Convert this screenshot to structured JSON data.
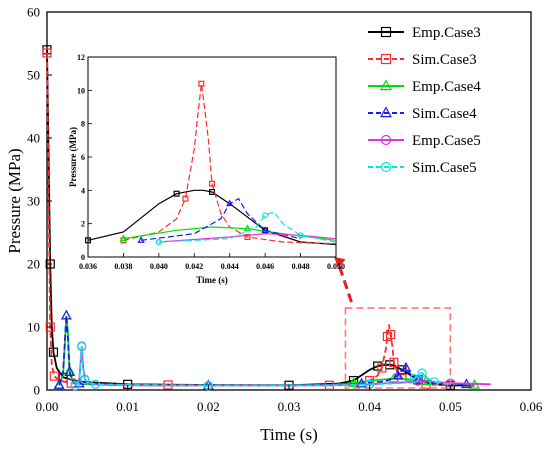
{
  "chart_data": {
    "type": "line",
    "xlabel": "Time (s)",
    "ylabel": "Pressure (MPa)",
    "xlim": [
      0,
      0.06
    ],
    "ylim": [
      0,
      60
    ],
    "xticks": [
      "0.00",
      "0.01",
      "0.02",
      "0.03",
      "0.04",
      "0.05",
      "0.06"
    ],
    "yticks": [
      "0",
      "10",
      "20",
      "30",
      "40",
      "50",
      "60"
    ],
    "legend_position": "top-right",
    "series": [
      {
        "name": "Emp.Case3",
        "color": "#000000",
        "dash": "solid",
        "marker": "square",
        "x": [
          0.0,
          0.0002,
          0.0004,
          0.0006,
          0.0008,
          0.0012,
          0.002,
          0.004,
          0.01,
          0.02,
          0.03,
          0.036,
          0.038,
          0.04,
          0.041,
          0.042,
          0.0425,
          0.043,
          0.044,
          0.045,
          0.046,
          0.048,
          0.05,
          0.053
        ],
        "y": [
          54,
          37,
          20,
          10,
          6,
          3.5,
          2,
          1.3,
          0.9,
          0.8,
          0.75,
          1.0,
          1.5,
          3.2,
          3.8,
          4.0,
          4.0,
          3.9,
          3.2,
          2.4,
          1.6,
          0.9,
          0.75,
          0.7
        ]
      },
      {
        "name": "Sim.Case3",
        "color": "#ff2a2a",
        "dash": "dashed",
        "marker": "square",
        "x": [
          0.0,
          0.0002,
          0.0004,
          0.0006,
          0.0009,
          0.0015,
          0.003,
          0.006,
          0.015,
          0.025,
          0.035,
          0.038,
          0.04,
          0.041,
          0.0415,
          0.042,
          0.0422,
          0.0424,
          0.0426,
          0.0428,
          0.043,
          0.0435,
          0.044,
          0.045,
          0.047,
          0.05
        ],
        "y": [
          53.5,
          30,
          10,
          4,
          2.2,
          1.5,
          1.1,
          0.9,
          0.8,
          0.75,
          0.75,
          1.0,
          1.5,
          2.3,
          3.5,
          6.5,
          8.5,
          10.4,
          8.8,
          7.0,
          4.4,
          2.6,
          1.8,
          1.2,
          0.9,
          0.8
        ]
      },
      {
        "name": "Emp.Case4",
        "color": "#00e000",
        "dash": "solid",
        "marker": "triangle",
        "x": [
          0.0015,
          0.002,
          0.0024,
          0.0026,
          0.0028,
          0.0032,
          0.004,
          0.008,
          0.02,
          0.035,
          0.038,
          0.041,
          0.043,
          0.045,
          0.047,
          0.05,
          0.053
        ],
        "y": [
          0.7,
          2.5,
          11.8,
          9.0,
          3.0,
          1.5,
          1.0,
          0.8,
          0.7,
          0.8,
          1.1,
          1.6,
          1.8,
          1.7,
          1.4,
          1.0,
          0.8
        ]
      },
      {
        "name": "Sim.Case4",
        "color": "#1a1aff",
        "dash": "dashed",
        "marker": "triangle",
        "x": [
          0.0015,
          0.002,
          0.0024,
          0.0026,
          0.0028,
          0.0032,
          0.004,
          0.008,
          0.02,
          0.035,
          0.039,
          0.042,
          0.0435,
          0.044,
          0.0445,
          0.045,
          0.046,
          0.048,
          0.052
        ],
        "y": [
          0.8,
          2.8,
          11.8,
          8.0,
          2.8,
          1.4,
          1.0,
          0.8,
          0.7,
          0.8,
          1.0,
          1.4,
          2.3,
          3.2,
          3.5,
          2.6,
          1.6,
          1.1,
          0.9
        ]
      },
      {
        "name": "Emp.Case5",
        "color": "#e033e0",
        "dash": "solid",
        "marker": "circle",
        "x": [
          0.0035,
          0.004,
          0.0043,
          0.0045,
          0.0047,
          0.0052,
          0.006,
          0.01,
          0.02,
          0.035,
          0.04,
          0.044,
          0.046,
          0.048,
          0.05,
          0.055
        ],
        "y": [
          0.6,
          1.5,
          6.9,
          3.5,
          1.7,
          1.1,
          0.9,
          0.75,
          0.7,
          0.75,
          0.9,
          1.2,
          1.4,
          1.3,
          1.1,
          0.9
        ]
      },
      {
        "name": "Sim.Case5",
        "color": "#00e5e5",
        "dash": "dashed",
        "marker": "circle",
        "x": [
          0.0035,
          0.004,
          0.0043,
          0.0045,
          0.0047,
          0.0052,
          0.006,
          0.01,
          0.02,
          0.035,
          0.04,
          0.044,
          0.0455,
          0.046,
          0.0465,
          0.047,
          0.048,
          0.05
        ],
        "y": [
          0.7,
          1.6,
          7.0,
          3.2,
          1.6,
          1.1,
          0.9,
          0.8,
          0.7,
          0.75,
          0.9,
          1.1,
          1.8,
          2.5,
          2.7,
          2.0,
          1.3,
          0.9
        ]
      }
    ],
    "inset": {
      "xlabel": "Time (s)",
      "ylabel": "Pressure (MPa)",
      "xlim": [
        0.036,
        0.05
      ],
      "ylim": [
        0,
        12
      ],
      "xticks": [
        "0.036",
        "0.038",
        "0.040",
        "0.042",
        "0.044",
        "0.046",
        "0.048",
        "0.050"
      ],
      "yticks": [
        "0",
        "2",
        "4",
        "6",
        "8",
        "10",
        "12"
      ],
      "zoom_box": {
        "x": [
          0.037,
          0.05
        ],
        "y": [
          0,
          13
        ]
      }
    }
  }
}
